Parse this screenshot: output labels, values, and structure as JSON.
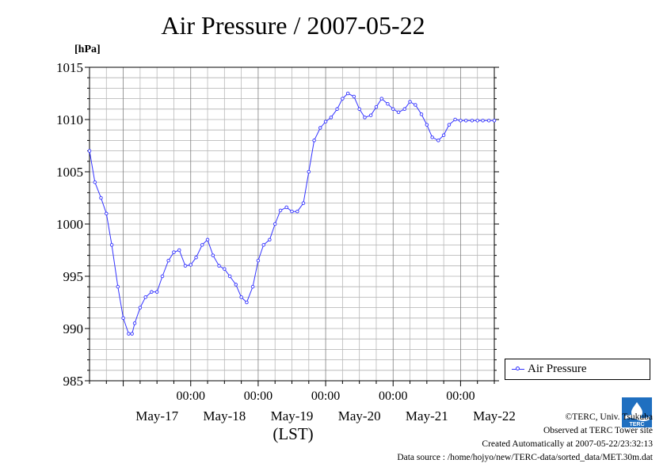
{
  "title": "Air Pressure / 2007-05-22",
  "unit_label": "[hPa]",
  "x_axis_title": "(LST)",
  "legend_label": "Air Pressure",
  "credits": {
    "copyright": "©TERC, Univ. Tsukuba",
    "observed": "Observed at TERC Tower site",
    "created": "Created Automatically at 2007-05-22/23:32:13",
    "source": "Data source : /home/hojyo/new/TERC-data/sorted_data/MET.30m.dat"
  },
  "logo_text": "TERC",
  "chart_data": {
    "type": "line",
    "title": "Air Pressure / 2007-05-22",
    "ylabel": "[hPa]",
    "xlabel": "(LST)",
    "ylim": [
      985,
      1015
    ],
    "yticks": [
      "985",
      "990",
      "995",
      "1000",
      "1005",
      "1010",
      "1015"
    ],
    "xlim_days": [
      -0.5,
      5.5
    ],
    "xticks_time": [
      "00:00",
      "00:00",
      "00:00",
      "00:00",
      "00:00"
    ],
    "xticks_date": [
      "May-17",
      "May-18",
      "May-19",
      "May-20",
      "May-21",
      "May-22"
    ],
    "grid": true,
    "legend": "right-bottom",
    "series_color": "#3333ff",
    "series": [
      {
        "name": "Air Pressure",
        "x": [
          -0.5,
          -0.42,
          -0.33,
          -0.25,
          -0.17,
          -0.08,
          0.0,
          0.08,
          0.13,
          0.17,
          0.25,
          0.33,
          0.42,
          0.5,
          0.58,
          0.67,
          0.75,
          0.83,
          0.92,
          1.0,
          1.08,
          1.17,
          1.25,
          1.33,
          1.42,
          1.5,
          1.58,
          1.67,
          1.75,
          1.83,
          1.92,
          2.0,
          2.08,
          2.17,
          2.25,
          2.33,
          2.42,
          2.5,
          2.58,
          2.67,
          2.75,
          2.83,
          2.92,
          3.0,
          3.08,
          3.17,
          3.25,
          3.33,
          3.42,
          3.5,
          3.58,
          3.67,
          3.75,
          3.83,
          3.92,
          4.0,
          4.08,
          4.17,
          4.25,
          4.33,
          4.42,
          4.5,
          4.58,
          4.67,
          4.75,
          4.83,
          4.92,
          5.0,
          5.08,
          5.17,
          5.25,
          5.33,
          5.42,
          5.5
        ],
        "y": [
          1007.0,
          1004.0,
          1002.5,
          1001.0,
          998.0,
          994.0,
          991.0,
          989.5,
          989.5,
          990.5,
          992.0,
          993.0,
          993.5,
          993.5,
          995.0,
          996.5,
          997.3,
          997.5,
          996.0,
          996.1,
          996.8,
          998.0,
          998.5,
          997.0,
          996.0,
          995.7,
          995.0,
          994.2,
          993.0,
          992.5,
          994.0,
          996.5,
          998.0,
          998.5,
          1000.0,
          1001.3,
          1001.6,
          1001.2,
          1001.2,
          1002.0,
          1005.0,
          1008.0,
          1009.2,
          1009.8,
          1010.2,
          1011.0,
          1012.0,
          1012.5,
          1012.2,
          1011.0,
          1010.2,
          1010.4,
          1011.2,
          1012.0,
          1011.5,
          1011.0,
          1010.7,
          1011.0,
          1011.7,
          1011.4,
          1010.5,
          1009.5,
          1008.3,
          1008.0,
          1008.5,
          1009.5,
          1010.0,
          1009.9,
          1009.9,
          1009.9,
          1009.9,
          1009.9,
          1009.9,
          1009.9
        ]
      }
    ]
  }
}
